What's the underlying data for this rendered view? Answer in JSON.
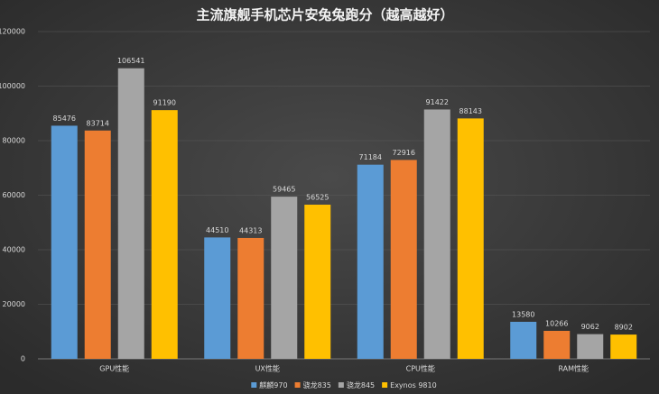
{
  "chart_data": {
    "type": "bar",
    "title": "主流旗舰手机芯片安兔兔跑分（越高越好）",
    "categories": [
      "GPU性能",
      "UX性能",
      "CPU性能",
      "RAM性能"
    ],
    "series": [
      {
        "name": "麒麟970",
        "color": "#5b9bd5",
        "values": [
          85476,
          44510,
          71184,
          13580
        ]
      },
      {
        "name": "骁龙835",
        "color": "#ed7d31",
        "values": [
          83714,
          44313,
          72916,
          10266
        ]
      },
      {
        "name": "骁龙845",
        "color": "#a5a5a5",
        "values": [
          106541,
          59465,
          91422,
          9062
        ]
      },
      {
        "name": "Exynos 9810",
        "color": "#ffc000",
        "values": [
          91190,
          56525,
          88143,
          8902
        ]
      }
    ],
    "ylim": [
      0,
      120000
    ],
    "yticks": [
      0,
      20000,
      40000,
      60000,
      80000,
      100000,
      120000
    ],
    "grid": true,
    "legend": "bottom"
  }
}
